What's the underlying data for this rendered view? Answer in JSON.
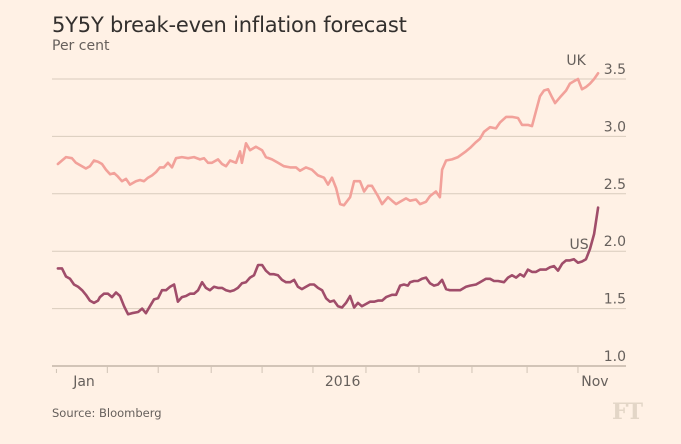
{
  "header": {
    "title": "5Y5Y break-even inflation forecast",
    "subtitle": "Per cent"
  },
  "footer": {
    "source": "Source: Bloomberg",
    "logo": "FT"
  },
  "chart_data": {
    "type": "line",
    "title": "5Y5Y break-even inflation forecast",
    "ylabel": "Per cent",
    "xlabel": "",
    "x_unit": "months since Jan 2015",
    "xlim": [
      -1.5,
      25.7
    ],
    "ylim": [
      1.0,
      3.5
    ],
    "yticks": [
      1.0,
      1.5,
      2.0,
      2.5,
      3.0,
      3.5
    ],
    "ytick_labels": [
      "1.0",
      "1.5",
      "2.0",
      "2.5",
      "3.0",
      "3.5"
    ],
    "xtick_labels": [
      {
        "label": "Jan",
        "x": 0
      },
      {
        "label": "2016",
        "x": 12.2
      },
      {
        "label": "Nov",
        "x": 24.1
      }
    ],
    "xtick_marks": [
      -1.3,
      1.1,
      3.5,
      6.0,
      8.4,
      10.8,
      13.3,
      15.8,
      18.3,
      20.9,
      23.3
    ],
    "grid": true,
    "legend": "inline-labels",
    "colors": {
      "UK": "#f2a19a",
      "US": "#a04d6a"
    },
    "series": [
      {
        "name": "UK",
        "label": "UK",
        "points": [
          [
            -1.23,
            2.76
          ],
          [
            -1.04,
            2.79
          ],
          [
            -0.85,
            2.82
          ],
          [
            -0.57,
            2.81
          ],
          [
            -0.38,
            2.77
          ],
          [
            -0.19,
            2.75
          ],
          [
            0.09,
            2.72
          ],
          [
            0.28,
            2.74
          ],
          [
            0.47,
            2.79
          ],
          [
            0.66,
            2.78
          ],
          [
            0.85,
            2.76
          ],
          [
            1.04,
            2.71
          ],
          [
            1.23,
            2.67
          ],
          [
            1.42,
            2.68
          ],
          [
            1.6,
            2.65
          ],
          [
            1.79,
            2.61
          ],
          [
            1.98,
            2.63
          ],
          [
            2.17,
            2.58
          ],
          [
            2.45,
            2.61
          ],
          [
            2.64,
            2.62
          ],
          [
            2.83,
            2.61
          ],
          [
            3.02,
            2.64
          ],
          [
            3.21,
            2.66
          ],
          [
            3.4,
            2.69
          ],
          [
            3.58,
            2.73
          ],
          [
            3.77,
            2.73
          ],
          [
            3.96,
            2.77
          ],
          [
            4.15,
            2.73
          ],
          [
            4.34,
            2.81
          ],
          [
            4.62,
            2.82
          ],
          [
            4.91,
            2.81
          ],
          [
            5.19,
            2.82
          ],
          [
            5.47,
            2.8
          ],
          [
            5.66,
            2.81
          ],
          [
            5.85,
            2.77
          ],
          [
            6.04,
            2.77
          ],
          [
            6.32,
            2.8
          ],
          [
            6.51,
            2.76
          ],
          [
            6.7,
            2.74
          ],
          [
            6.89,
            2.79
          ],
          [
            7.17,
            2.77
          ],
          [
            7.36,
            2.87
          ],
          [
            7.45,
            2.77
          ],
          [
            7.64,
            2.94
          ],
          [
            7.83,
            2.88
          ],
          [
            8.11,
            2.91
          ],
          [
            8.4,
            2.88
          ],
          [
            8.58,
            2.82
          ],
          [
            8.87,
            2.8
          ],
          [
            9.15,
            2.77
          ],
          [
            9.43,
            2.74
          ],
          [
            9.72,
            2.73
          ],
          [
            10.0,
            2.73
          ],
          [
            10.19,
            2.7
          ],
          [
            10.47,
            2.73
          ],
          [
            10.75,
            2.71
          ],
          [
            11.04,
            2.66
          ],
          [
            11.32,
            2.64
          ],
          [
            11.51,
            2.58
          ],
          [
            11.7,
            2.64
          ],
          [
            11.89,
            2.55
          ],
          [
            12.08,
            2.41
          ],
          [
            12.26,
            2.4
          ],
          [
            12.55,
            2.47
          ],
          [
            12.74,
            2.61
          ],
          [
            13.02,
            2.61
          ],
          [
            13.21,
            2.52
          ],
          [
            13.4,
            2.57
          ],
          [
            13.58,
            2.57
          ],
          [
            13.87,
            2.48
          ],
          [
            14.06,
            2.41
          ],
          [
            14.34,
            2.47
          ],
          [
            14.53,
            2.44
          ],
          [
            14.72,
            2.41
          ],
          [
            14.91,
            2.43
          ],
          [
            15.19,
            2.46
          ],
          [
            15.38,
            2.44
          ],
          [
            15.66,
            2.45
          ],
          [
            15.85,
            2.41
          ],
          [
            16.13,
            2.43
          ],
          [
            16.32,
            2.48
          ],
          [
            16.6,
            2.52
          ],
          [
            16.79,
            2.47
          ],
          [
            16.89,
            2.71
          ],
          [
            17.08,
            2.79
          ],
          [
            17.36,
            2.8
          ],
          [
            17.64,
            2.82
          ],
          [
            18.02,
            2.87
          ],
          [
            18.21,
            2.9
          ],
          [
            18.49,
            2.95
          ],
          [
            18.68,
            2.98
          ],
          [
            18.87,
            3.04
          ],
          [
            19.15,
            3.08
          ],
          [
            19.43,
            3.07
          ],
          [
            19.62,
            3.12
          ],
          [
            19.91,
            3.17
          ],
          [
            20.19,
            3.17
          ],
          [
            20.47,
            3.16
          ],
          [
            20.66,
            3.1
          ],
          [
            20.94,
            3.1
          ],
          [
            21.13,
            3.09
          ],
          [
            21.32,
            3.22
          ],
          [
            21.51,
            3.35
          ],
          [
            21.7,
            3.4
          ],
          [
            21.89,
            3.41
          ],
          [
            22.08,
            3.34
          ],
          [
            22.22,
            3.29
          ],
          [
            22.45,
            3.34
          ],
          [
            22.74,
            3.4
          ],
          [
            22.92,
            3.46
          ],
          [
            23.11,
            3.48
          ],
          [
            23.3,
            3.5
          ],
          [
            23.49,
            3.41
          ],
          [
            23.68,
            3.43
          ],
          [
            23.87,
            3.46
          ],
          [
            24.06,
            3.5
          ],
          [
            24.25,
            3.55
          ]
        ]
      },
      {
        "name": "US",
        "label": "US",
        "points": [
          [
            -1.23,
            1.85
          ],
          [
            -1.04,
            1.85
          ],
          [
            -0.85,
            1.78
          ],
          [
            -0.66,
            1.76
          ],
          [
            -0.47,
            1.71
          ],
          [
            -0.28,
            1.69
          ],
          [
            -0.09,
            1.66
          ],
          [
            0.09,
            1.62
          ],
          [
            0.28,
            1.57
          ],
          [
            0.47,
            1.55
          ],
          [
            0.66,
            1.57
          ],
          [
            0.75,
            1.6
          ],
          [
            0.94,
            1.63
          ],
          [
            1.13,
            1.63
          ],
          [
            1.32,
            1.6
          ],
          [
            1.51,
            1.64
          ],
          [
            1.7,
            1.61
          ],
          [
            1.89,
            1.52
          ],
          [
            2.08,
            1.45
          ],
          [
            2.26,
            1.46
          ],
          [
            2.55,
            1.47
          ],
          [
            2.74,
            1.5
          ],
          [
            2.92,
            1.46
          ],
          [
            3.11,
            1.52
          ],
          [
            3.3,
            1.58
          ],
          [
            3.49,
            1.59
          ],
          [
            3.68,
            1.66
          ],
          [
            3.87,
            1.66
          ],
          [
            4.06,
            1.69
          ],
          [
            4.25,
            1.71
          ],
          [
            4.43,
            1.56
          ],
          [
            4.62,
            1.6
          ],
          [
            4.81,
            1.61
          ],
          [
            5.0,
            1.63
          ],
          [
            5.19,
            1.63
          ],
          [
            5.38,
            1.66
          ],
          [
            5.57,
            1.73
          ],
          [
            5.75,
            1.68
          ],
          [
            5.94,
            1.66
          ],
          [
            6.13,
            1.69
          ],
          [
            6.32,
            1.68
          ],
          [
            6.51,
            1.68
          ],
          [
            6.7,
            1.66
          ],
          [
            6.89,
            1.65
          ],
          [
            7.08,
            1.66
          ],
          [
            7.26,
            1.68
          ],
          [
            7.45,
            1.72
          ],
          [
            7.64,
            1.73
          ],
          [
            7.83,
            1.77
          ],
          [
            8.02,
            1.79
          ],
          [
            8.21,
            1.88
          ],
          [
            8.4,
            1.88
          ],
          [
            8.58,
            1.83
          ],
          [
            8.77,
            1.8
          ],
          [
            8.96,
            1.8
          ],
          [
            9.15,
            1.79
          ],
          [
            9.34,
            1.75
          ],
          [
            9.53,
            1.73
          ],
          [
            9.72,
            1.73
          ],
          [
            9.91,
            1.75
          ],
          [
            10.09,
            1.69
          ],
          [
            10.28,
            1.67
          ],
          [
            10.47,
            1.69
          ],
          [
            10.66,
            1.71
          ],
          [
            10.85,
            1.71
          ],
          [
            11.04,
            1.68
          ],
          [
            11.23,
            1.66
          ],
          [
            11.42,
            1.59
          ],
          [
            11.6,
            1.56
          ],
          [
            11.79,
            1.57
          ],
          [
            11.98,
            1.52
          ],
          [
            12.17,
            1.51
          ],
          [
            12.36,
            1.55
          ],
          [
            12.55,
            1.61
          ],
          [
            12.74,
            1.51
          ],
          [
            12.92,
            1.55
          ],
          [
            13.11,
            1.52
          ],
          [
            13.3,
            1.54
          ],
          [
            13.49,
            1.56
          ],
          [
            13.68,
            1.56
          ],
          [
            13.87,
            1.57
          ],
          [
            14.06,
            1.57
          ],
          [
            14.25,
            1.6
          ],
          [
            14.53,
            1.62
          ],
          [
            14.72,
            1.62
          ],
          [
            14.91,
            1.7
          ],
          [
            15.09,
            1.71
          ],
          [
            15.28,
            1.7
          ],
          [
            15.38,
            1.73
          ],
          [
            15.57,
            1.74
          ],
          [
            15.75,
            1.74
          ],
          [
            15.94,
            1.76
          ],
          [
            16.13,
            1.77
          ],
          [
            16.32,
            1.72
          ],
          [
            16.51,
            1.7
          ],
          [
            16.7,
            1.71
          ],
          [
            16.89,
            1.75
          ],
          [
            17.08,
            1.67
          ],
          [
            17.26,
            1.66
          ],
          [
            17.55,
            1.66
          ],
          [
            17.74,
            1.66
          ],
          [
            18.02,
            1.69
          ],
          [
            18.21,
            1.7
          ],
          [
            18.49,
            1.71
          ],
          [
            18.68,
            1.73
          ],
          [
            18.96,
            1.76
          ],
          [
            19.15,
            1.76
          ],
          [
            19.34,
            1.74
          ],
          [
            19.53,
            1.74
          ],
          [
            19.81,
            1.73
          ],
          [
            20.0,
            1.77
          ],
          [
            20.19,
            1.79
          ],
          [
            20.38,
            1.77
          ],
          [
            20.57,
            1.8
          ],
          [
            20.75,
            1.78
          ],
          [
            20.94,
            1.84
          ],
          [
            21.13,
            1.82
          ],
          [
            21.32,
            1.82
          ],
          [
            21.51,
            1.84
          ],
          [
            21.79,
            1.84
          ],
          [
            21.98,
            1.86
          ],
          [
            22.17,
            1.87
          ],
          [
            22.36,
            1.83
          ],
          [
            22.55,
            1.89
          ],
          [
            22.74,
            1.92
          ],
          [
            22.92,
            1.92
          ],
          [
            23.11,
            1.93
          ],
          [
            23.3,
            1.9
          ],
          [
            23.49,
            1.91
          ],
          [
            23.68,
            1.93
          ],
          [
            23.87,
            2.02
          ],
          [
            24.06,
            2.15
          ],
          [
            24.25,
            2.38
          ]
        ]
      }
    ]
  }
}
